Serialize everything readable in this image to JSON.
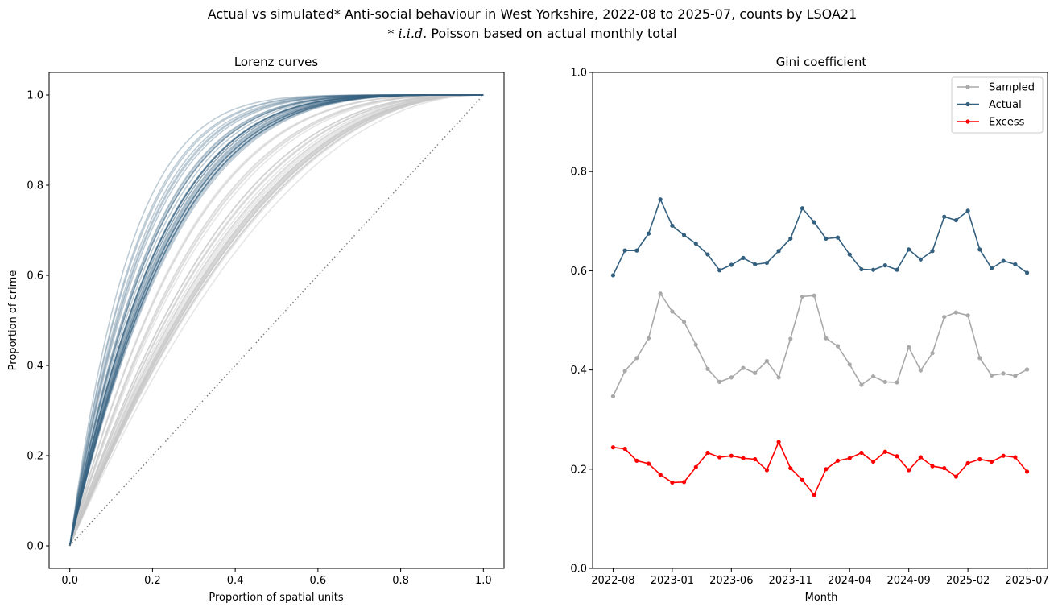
{
  "figure": {
    "title_line1": "Actual vs simulated* Anti-social behaviour in West Yorkshire, 2022-08 to 2025-07, counts by LSOA21",
    "title_line2_prefix": "* ",
    "title_line2_math": "i.i.d.",
    "title_line2_suffix": " Poisson based on actual monthly total",
    "colors": {
      "actual": "#34607f",
      "sampled": "#a9a9a9",
      "excess": "#ff0000",
      "lorenz_actual": "#34607f",
      "lorenz_sampled": "#c8c8c8",
      "equality": "#808080"
    }
  },
  "chart_data": [
    {
      "type": "line",
      "title": "Lorenz curves",
      "xlabel": "Proportion of spatial units",
      "ylabel": "Proportion of crime",
      "xlim": [
        -0.05,
        1.05
      ],
      "ylim": [
        -0.05,
        1.05
      ],
      "xticks": [
        "0.0",
        "0.2",
        "0.4",
        "0.6",
        "0.8",
        "1.0"
      ],
      "yticks": [
        "0.0",
        "0.2",
        "0.4",
        "0.6",
        "0.8",
        "1.0"
      ],
      "equality_line": {
        "x": [
          0,
          1
        ],
        "y": [
          0,
          1
        ],
        "style": "dotted"
      },
      "series_note": "one actual (blue) and one sampled (grey) Lorenz curve per month; 36 months",
      "actual_ginis": [
        0.591,
        0.641,
        0.641,
        0.675,
        0.744,
        0.691,
        0.672,
        0.655,
        0.633,
        0.601,
        0.612,
        0.626,
        0.613,
        0.616,
        0.64,
        0.665,
        0.726,
        0.698,
        0.665,
        0.667,
        0.633,
        0.603,
        0.602,
        0.611,
        0.602,
        0.643,
        0.623,
        0.64,
        0.709,
        0.702,
        0.721,
        0.643,
        0.605,
        0.62,
        0.613,
        0.596
      ],
      "sampled_ginis": [
        0.347,
        0.398,
        0.424,
        0.464,
        0.554,
        0.518,
        0.497,
        0.451,
        0.402,
        0.376,
        0.385,
        0.404,
        0.394,
        0.418,
        0.385,
        0.463,
        0.548,
        0.55,
        0.464,
        0.448,
        0.411,
        0.37,
        0.387,
        0.376,
        0.375,
        0.446,
        0.399,
        0.434,
        0.507,
        0.516,
        0.51,
        0.424,
        0.389,
        0.393,
        0.388,
        0.401
      ]
    },
    {
      "type": "line",
      "title": "Gini coefficient",
      "xlabel": "Month",
      "ylabel": "",
      "ylim": [
        0.0,
        1.0
      ],
      "yticks": [
        "0.0",
        "0.2",
        "0.4",
        "0.6",
        "0.8",
        "1.0"
      ],
      "xtick_labels": [
        "2022-08",
        "2023-01",
        "2023-06",
        "2023-11",
        "2024-04",
        "2024-09",
        "2025-02",
        "2025-07"
      ],
      "xtick_indices": [
        0,
        5,
        10,
        15,
        20,
        25,
        30,
        35
      ],
      "x": [
        "2022-08",
        "2022-09",
        "2022-10",
        "2022-11",
        "2022-12",
        "2023-01",
        "2023-02",
        "2023-03",
        "2023-04",
        "2023-05",
        "2023-06",
        "2023-07",
        "2023-08",
        "2023-09",
        "2023-10",
        "2023-11",
        "2023-12",
        "2024-01",
        "2024-02",
        "2024-03",
        "2024-04",
        "2024-05",
        "2024-06",
        "2024-07",
        "2024-08",
        "2024-09",
        "2024-10",
        "2024-11",
        "2024-12",
        "2025-01",
        "2025-02",
        "2025-03",
        "2025-04",
        "2025-05",
        "2025-06",
        "2025-07"
      ],
      "legend_position": "top-right",
      "series": [
        {
          "name": "Sampled",
          "color": "#a9a9a9",
          "values": [
            0.347,
            0.398,
            0.424,
            0.464,
            0.554,
            0.518,
            0.497,
            0.451,
            0.402,
            0.376,
            0.385,
            0.404,
            0.394,
            0.418,
            0.385,
            0.463,
            0.548,
            0.55,
            0.464,
            0.448,
            0.411,
            0.37,
            0.387,
            0.376,
            0.375,
            0.446,
            0.399,
            0.434,
            0.507,
            0.516,
            0.51,
            0.424,
            0.389,
            0.393,
            0.388,
            0.401
          ]
        },
        {
          "name": "Actual",
          "color": "#34607f",
          "values": [
            0.591,
            0.641,
            0.641,
            0.675,
            0.744,
            0.691,
            0.672,
            0.655,
            0.633,
            0.601,
            0.612,
            0.626,
            0.613,
            0.616,
            0.64,
            0.665,
            0.726,
            0.698,
            0.665,
            0.667,
            0.633,
            0.603,
            0.602,
            0.611,
            0.602,
            0.643,
            0.623,
            0.64,
            0.709,
            0.702,
            0.721,
            0.643,
            0.605,
            0.62,
            0.613,
            0.596
          ]
        },
        {
          "name": "Excess",
          "color": "#ff0000",
          "values": [
            0.244,
            0.241,
            0.217,
            0.211,
            0.189,
            0.173,
            0.174,
            0.204,
            0.233,
            0.224,
            0.227,
            0.222,
            0.22,
            0.198,
            0.255,
            0.202,
            0.178,
            0.148,
            0.2,
            0.217,
            0.222,
            0.233,
            0.215,
            0.235,
            0.226,
            0.198,
            0.224,
            0.206,
            0.202,
            0.185,
            0.212,
            0.22,
            0.215,
            0.227,
            0.224,
            0.195
          ]
        }
      ]
    }
  ]
}
